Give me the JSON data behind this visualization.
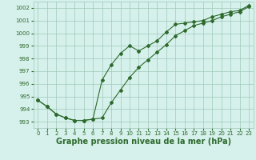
{
  "line1_x": [
    0,
    1,
    2,
    3,
    4,
    5,
    6,
    7,
    8,
    9,
    10,
    11,
    12,
    13,
    14,
    15,
    16,
    17,
    18,
    19,
    20,
    21,
    22,
    23
  ],
  "line1_y": [
    994.7,
    994.2,
    993.6,
    993.3,
    993.1,
    993.1,
    993.2,
    993.3,
    994.5,
    995.5,
    996.5,
    997.3,
    997.9,
    998.5,
    999.1,
    999.8,
    1000.2,
    1000.6,
    1000.8,
    1001.0,
    1001.3,
    1001.5,
    1001.7,
    1002.1
  ],
  "line2_x": [
    0,
    1,
    2,
    3,
    4,
    5,
    6,
    7,
    8,
    9,
    10,
    11,
    12,
    13,
    14,
    15,
    16,
    17,
    18,
    19,
    20,
    21,
    22,
    23
  ],
  "line2_y": [
    994.7,
    994.2,
    993.6,
    993.3,
    993.1,
    993.1,
    993.2,
    996.3,
    997.5,
    998.4,
    999.0,
    998.6,
    999.0,
    999.4,
    1000.1,
    1000.7,
    1000.8,
    1000.9,
    1001.0,
    1001.3,
    1001.5,
    1001.7,
    1001.8,
    1002.2
  ],
  "line_color": "#2d6a2d",
  "bg_color": "#d6f0eb",
  "grid_color": "#9fc8b8",
  "xlabel": "Graphe pression niveau de la mer (hPa)",
  "ylim": [
    992.5,
    1002.5
  ],
  "xlim": [
    -0.5,
    23.5
  ],
  "yticks": [
    993,
    994,
    995,
    996,
    997,
    998,
    999,
    1000,
    1001,
    1002
  ],
  "xticks": [
    0,
    1,
    2,
    3,
    4,
    5,
    6,
    7,
    8,
    9,
    10,
    11,
    12,
    13,
    14,
    15,
    16,
    17,
    18,
    19,
    20,
    21,
    22,
    23
  ],
  "tick_fontsize": 5.0,
  "xlabel_fontsize": 7.0
}
